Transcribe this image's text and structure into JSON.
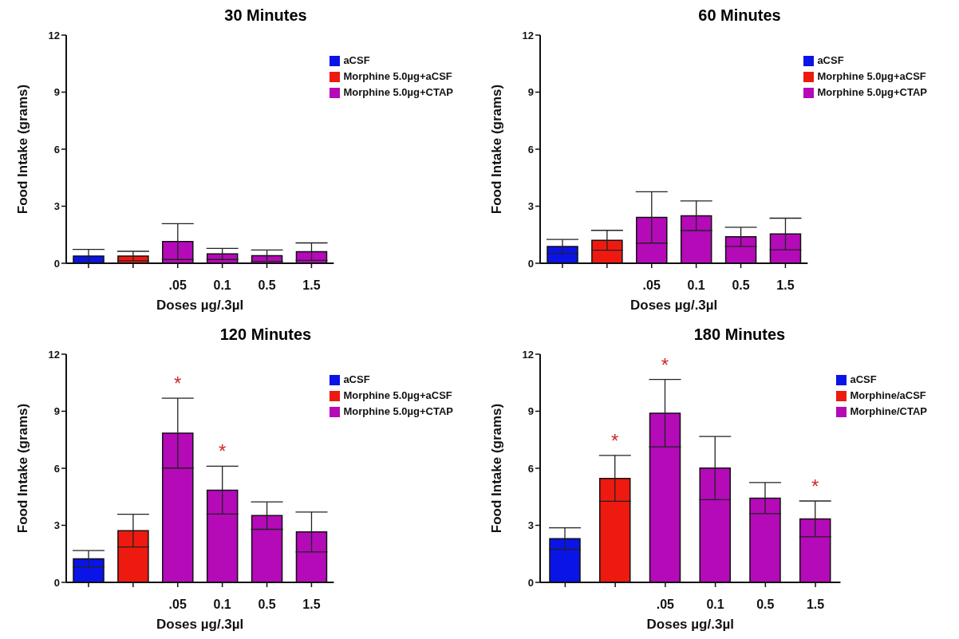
{
  "chart_data": [
    {
      "type": "bar",
      "title": "30 Minutes",
      "xlabel": "Doses µg/.3µl",
      "ylabel": "Food Intake (grams)",
      "categories": [
        null,
        null,
        ".05",
        "0.1",
        "0.5",
        "1.5"
      ],
      "ylim": [
        0,
        12
      ],
      "yticks": [
        0,
        3,
        6,
        9,
        12
      ],
      "legend": "top right",
      "series": [
        {
          "name": "aCSF",
          "color": "#0a14e6",
          "values": [
            0.38,
            null,
            null,
            null,
            null,
            null
          ],
          "errors": [
            0.35,
            null,
            null,
            null,
            null,
            null
          ]
        },
        {
          "name": "Morphine 5.0µg+aCSF",
          "color": "#ee1a10",
          "values": [
            null,
            0.38,
            null,
            null,
            null,
            null
          ],
          "errors": [
            null,
            0.25,
            null,
            null,
            null,
            null
          ]
        },
        {
          "name": "Morphine 5.0µg+CTAP",
          "color": "#b40ab8",
          "values": [
            null,
            null,
            1.14,
            0.49,
            0.4,
            0.61
          ],
          "errors": [
            null,
            null,
            0.94,
            0.29,
            0.3,
            0.46
          ]
        }
      ]
    },
    {
      "type": "bar",
      "title": "60 Minutes",
      "xlabel": "Doses µg/.3µl",
      "ylabel": "Food Intake (grams)",
      "categories": [
        null,
        null,
        ".05",
        "0.1",
        "0.5",
        "1.5"
      ],
      "ylim": [
        0,
        12
      ],
      "yticks": [
        0,
        3,
        6,
        9,
        12
      ],
      "legend": "top right",
      "series": [
        {
          "name": "aCSF",
          "color": "#0a14e6",
          "values": [
            0.88,
            null,
            null,
            null,
            null,
            null
          ],
          "errors": [
            0.37,
            null,
            null,
            null,
            null,
            null
          ]
        },
        {
          "name": "Morphine 5.0µg+aCSF",
          "color": "#ee1a10",
          "values": [
            null,
            1.21,
            null,
            null,
            null,
            null
          ],
          "errors": [
            null,
            0.52,
            null,
            null,
            null,
            null
          ]
        },
        {
          "name": "Morphine 5.0µg+CTAP",
          "color": "#b40ab8",
          "values": [
            null,
            null,
            2.41,
            2.5,
            1.39,
            1.54
          ],
          "errors": [
            null,
            null,
            1.35,
            0.78,
            0.5,
            0.83
          ]
        }
      ]
    },
    {
      "type": "bar",
      "title": "120 Minutes",
      "xlabel": "Doses µg/.3µl",
      "ylabel": "Food Intake (grams)",
      "categories": [
        null,
        null,
        ".05",
        "0.1",
        "0.5",
        "1.5"
      ],
      "ylim": [
        0,
        12
      ],
      "yticks": [
        0,
        3,
        6,
        9,
        12
      ],
      "legend": "top right",
      "series": [
        {
          "name": "aCSF",
          "color": "#0a14e6",
          "values": [
            1.24,
            null,
            null,
            null,
            null,
            null
          ],
          "errors": [
            0.43,
            null,
            null,
            null,
            null,
            null
          ]
        },
        {
          "name": "Morphine 5.0µg+aCSF",
          "color": "#ee1a10",
          "values": [
            null,
            2.72,
            null,
            null,
            null,
            null
          ],
          "errors": [
            null,
            0.86,
            null,
            null,
            null,
            null
          ]
        },
        {
          "name": "Morphine 5.0µg+CTAP",
          "color": "#b40ab8",
          "values": [
            null,
            null,
            7.85,
            4.85,
            3.51,
            2.65
          ],
          "errors": [
            null,
            null,
            1.84,
            1.26,
            0.72,
            1.05
          ],
          "value_labels": [
            null,
            null,
            "*",
            "*",
            null,
            null
          ]
        }
      ]
    },
    {
      "type": "bar",
      "title": "180 Minutes",
      "xlabel": "Doses µg/.3µl",
      "ylabel": "Food Intake (grams)",
      "categories": [
        null,
        null,
        ".05",
        "0.1",
        "0.5",
        "1.5"
      ],
      "ylim": [
        0,
        12
      ],
      "yticks": [
        0,
        3,
        6,
        9,
        12
      ],
      "legend": "top right",
      "series": [
        {
          "name": "aCSF",
          "color": "#0a14e6",
          "values": [
            2.3,
            null,
            null,
            null,
            null,
            null
          ],
          "errors": [
            0.57,
            null,
            null,
            null,
            null,
            null
          ]
        },
        {
          "name": "Morphine/aCSF",
          "color": "#ee1a10",
          "values": [
            null,
            5.47,
            null,
            null,
            null,
            null
          ],
          "errors": [
            null,
            1.21,
            null,
            null,
            null,
            null
          ],
          "value_labels": [
            null,
            "*",
            null,
            null,
            null,
            null
          ]
        },
        {
          "name": "Morphine/CTAP",
          "color": "#b40ab8",
          "values": [
            null,
            null,
            8.9,
            6.01,
            4.43,
            3.34
          ],
          "errors": [
            null,
            null,
            1.77,
            1.66,
            0.82,
            0.94
          ],
          "value_labels": [
            null,
            null,
            "*",
            null,
            null,
            "*"
          ]
        }
      ]
    }
  ]
}
